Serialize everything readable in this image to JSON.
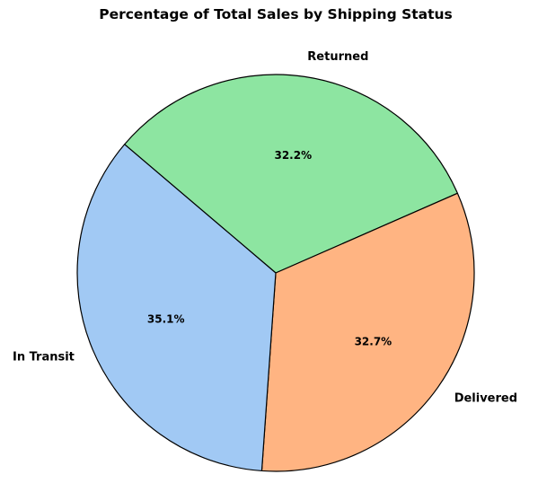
{
  "chart_data": {
    "type": "pie",
    "title": "Percentage of Total Sales by Shipping Status",
    "slices": [
      {
        "label": "Returned",
        "percent": 32.2,
        "percent_label": "32.2%",
        "color": "#8de5a1"
      },
      {
        "label": "Delivered",
        "percent": 32.7,
        "percent_label": "32.7%",
        "color": "#ffb482"
      },
      {
        "label": "In Transit",
        "percent": 35.1,
        "percent_label": "35.1%",
        "color": "#a1c9f4"
      }
    ],
    "start_angle_deg": 139.6,
    "direction": "clockwise",
    "edge_color": "#000000"
  }
}
